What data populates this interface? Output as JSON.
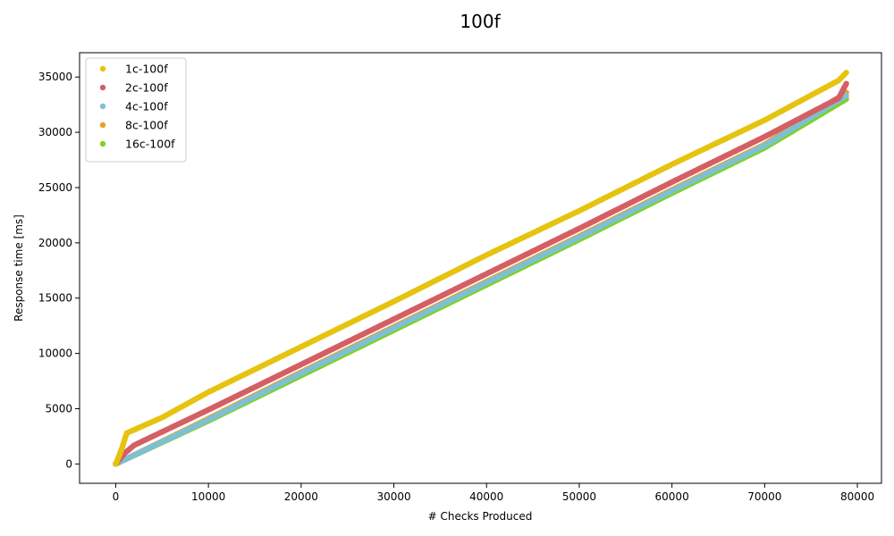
{
  "chart_data": {
    "type": "scatter",
    "title": "100f",
    "xlabel": "# Checks Produced",
    "ylabel": "Response time [ms]",
    "xlim": [
      -3900,
      82600
    ],
    "ylim": [
      -1750,
      37200
    ],
    "xticks": [
      0,
      10000,
      20000,
      30000,
      40000,
      50000,
      60000,
      70000,
      80000
    ],
    "yticks": [
      0,
      5000,
      10000,
      15000,
      20000,
      25000,
      30000,
      35000
    ],
    "grid": false,
    "legend_position": "top-left",
    "series": [
      {
        "name": "1c-100f",
        "color": "#e6c30f",
        "points": [
          [
            0,
            0
          ],
          [
            150,
            300
          ],
          [
            400,
            800
          ],
          [
            700,
            1500
          ],
          [
            1000,
            2300
          ],
          [
            1200,
            2800
          ],
          [
            5000,
            4200
          ],
          [
            10000,
            6500
          ],
          [
            20000,
            10600
          ],
          [
            30000,
            14700
          ],
          [
            40000,
            18900
          ],
          [
            50000,
            22900
          ],
          [
            60000,
            27100
          ],
          [
            70000,
            31100
          ],
          [
            78000,
            34700
          ],
          [
            78800,
            35400
          ]
        ]
      },
      {
        "name": "2c-100f",
        "color": "#d45f64",
        "points": [
          [
            0,
            0
          ],
          [
            500,
            500
          ],
          [
            1000,
            1000
          ],
          [
            2000,
            1700
          ],
          [
            10000,
            4900
          ],
          [
            20000,
            9000
          ],
          [
            30000,
            13100
          ],
          [
            40000,
            17200
          ],
          [
            50000,
            21300
          ],
          [
            60000,
            25500
          ],
          [
            70000,
            29600
          ],
          [
            78000,
            33100
          ],
          [
            78800,
            34400
          ]
        ]
      },
      {
        "name": "4c-100f",
        "color": "#7fbfd6",
        "points": [
          [
            0,
            0
          ],
          [
            10000,
            4000
          ],
          [
            20000,
            8200
          ],
          [
            30000,
            12300
          ],
          [
            40000,
            16400
          ],
          [
            50000,
            20500
          ],
          [
            60000,
            24700
          ],
          [
            70000,
            28800
          ],
          [
            78800,
            33300
          ]
        ]
      },
      {
        "name": "8c-100f",
        "color": "#eba21f",
        "points": [
          [
            0,
            0
          ],
          [
            10000,
            4100
          ],
          [
            20000,
            8300
          ],
          [
            30000,
            12400
          ],
          [
            40000,
            16500
          ],
          [
            50000,
            20600
          ],
          [
            60000,
            24800
          ],
          [
            70000,
            28900
          ],
          [
            78800,
            33600
          ]
        ]
      },
      {
        "name": "16c-100f",
        "color": "#7ed321",
        "points": [
          [
            0,
            0
          ],
          [
            10000,
            3900
          ],
          [
            20000,
            8000
          ],
          [
            30000,
            12100
          ],
          [
            40000,
            16200
          ],
          [
            50000,
            20300
          ],
          [
            60000,
            24500
          ],
          [
            70000,
            28600
          ],
          [
            78800,
            33000
          ]
        ]
      }
    ]
  }
}
